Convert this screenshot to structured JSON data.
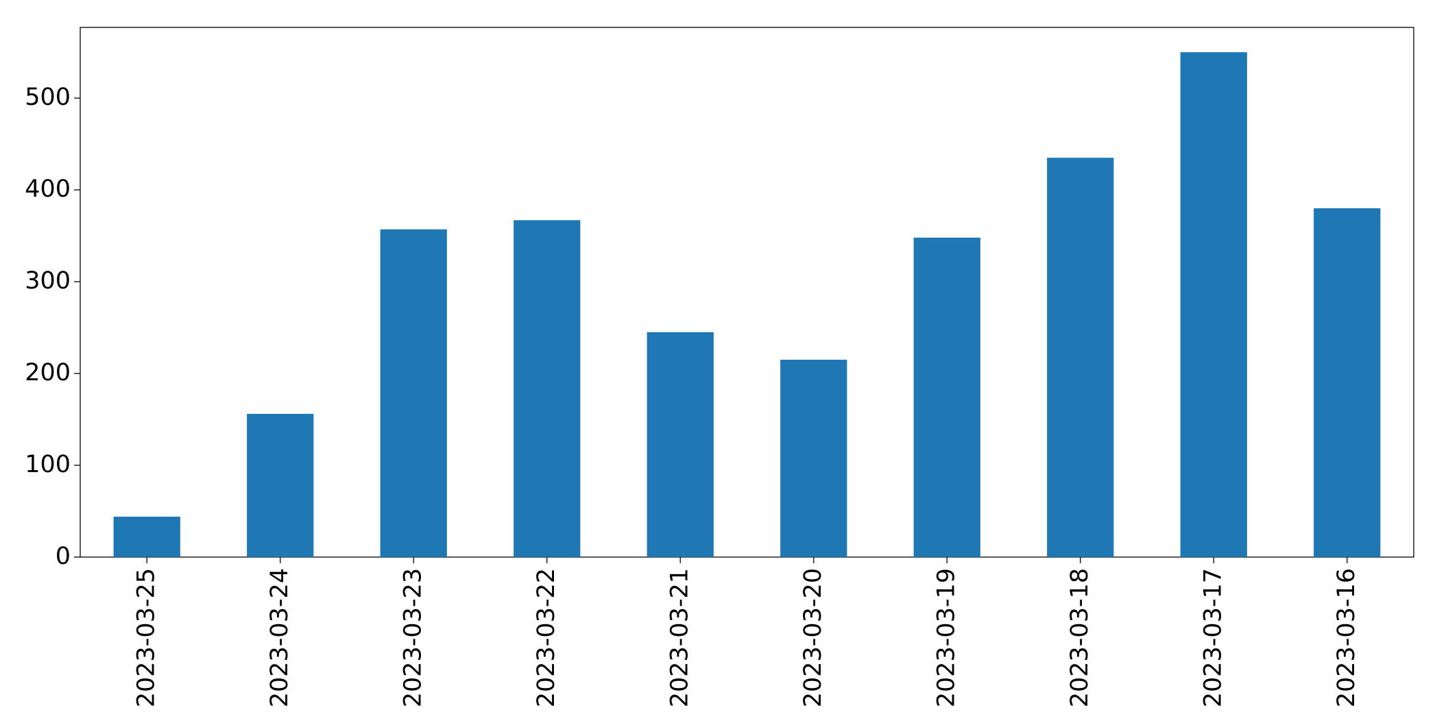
{
  "chart_data": {
    "type": "bar",
    "categories": [
      "2023-03-25",
      "2023-03-24",
      "2023-03-23",
      "2023-03-22",
      "2023-03-21",
      "2023-03-20",
      "2023-03-19",
      "2023-03-18",
      "2023-03-17",
      "2023-03-16"
    ],
    "values": [
      44,
      156,
      357,
      367,
      245,
      215,
      348,
      435,
      550,
      380
    ],
    "color": "#1f77b4",
    "ylim": [
      0,
      577
    ],
    "yticks": [
      0,
      100,
      200,
      300,
      400,
      500
    ],
    "grid": false
  }
}
